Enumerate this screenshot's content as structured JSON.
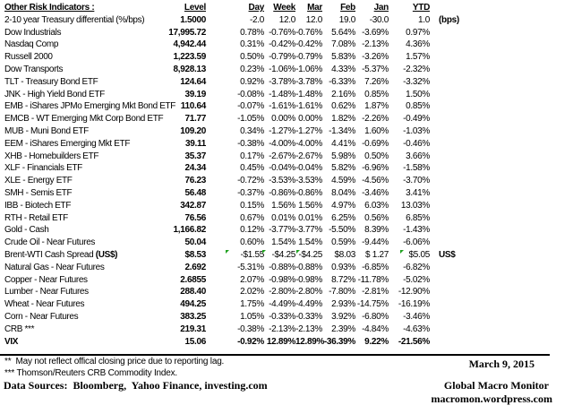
{
  "table": {
    "title": "Other Risk Indicators :",
    "columns": [
      "Level",
      "Day",
      "Week",
      "Mar",
      "Feb",
      "Jan",
      "YTD"
    ],
    "rows": [
      {
        "name": "2-10 year Treasury differential (%/bps)",
        "level": "1.5000",
        "day": "-2.0",
        "week": "12.0",
        "mar": "12.0",
        "feb": "19.0",
        "jan": "-30.0",
        "ytd": "1.0",
        "note": "(bps)"
      },
      {
        "name": "Dow Industrials",
        "level": "17,995.72",
        "day": "0.78%",
        "week": "-0.76%",
        "mar": "-0.76%",
        "feb": "5.64%",
        "jan": "-3.69%",
        "ytd": "0.97%"
      },
      {
        "name": "Nasdaq Comp",
        "level": "4,942.44",
        "day": "0.31%",
        "week": "-0.42%",
        "mar": "-0.42%",
        "feb": "7.08%",
        "jan": "-2.13%",
        "ytd": "4.36%"
      },
      {
        "name": "Russell 2000",
        "level": "1,223.59",
        "day": "0.50%",
        "week": "-0.79%",
        "mar": "-0.79%",
        "feb": "5.83%",
        "jan": "-3.26%",
        "ytd": "1.57%"
      },
      {
        "name": "Dow Transports",
        "level": "8,928.13",
        "day": "0.23%",
        "week": "-1.06%",
        "mar": "-1.06%",
        "feb": "4.33%",
        "jan": "-5.37%",
        "ytd": "-2.32%"
      },
      {
        "name": "TLT - Treasury Bond ETF",
        "level": "124.64",
        "day": "0.92%",
        "week": "-3.78%",
        "mar": "-3.78%",
        "feb": "-6.33%",
        "jan": "7.26%",
        "ytd": "-3.32%"
      },
      {
        "name": "JNK - High Yield Bond ETF",
        "level": "39.19",
        "day": "-0.08%",
        "week": "-1.48%",
        "mar": "-1.48%",
        "feb": "2.16%",
        "jan": "0.85%",
        "ytd": "1.50%"
      },
      {
        "name": "EMB - iShares JPMo Emerging Mkt Bond ETF",
        "level": "110.64",
        "day": "-0.07%",
        "week": "-1.61%",
        "mar": "-1.61%",
        "feb": "0.62%",
        "jan": "1.87%",
        "ytd": "0.85%"
      },
      {
        "name": "EMCB - WT Emerging Mkt Corp Bond ETF",
        "level": "71.77",
        "day": "-1.05%",
        "week": "0.00%",
        "mar": "0.00%",
        "feb": "1.82%",
        "jan": "-2.26%",
        "ytd": "-0.49%"
      },
      {
        "name": "MUB - Muni Bond ETF",
        "level": "109.20",
        "day": "0.34%",
        "week": "-1.27%",
        "mar": "-1.27%",
        "feb": "-1.34%",
        "jan": "1.60%",
        "ytd": "-1.03%"
      },
      {
        "name": "EEM - iShares Emerging Mkt ETF",
        "level": "39.11",
        "day": "-0.38%",
        "week": "-4.00%",
        "mar": "-4.00%",
        "feb": "4.41%",
        "jan": "-0.69%",
        "ytd": "-0.46%"
      },
      {
        "name": "XHB - Homebuilders ETF",
        "level": "35.37",
        "day": "0.17%",
        "week": "-2.67%",
        "mar": "-2.67%",
        "feb": "5.98%",
        "jan": "0.50%",
        "ytd": "3.66%"
      },
      {
        "name": "XLF - Financials ETF",
        "level": "24.34",
        "day": "0.45%",
        "week": "-0.04%",
        "mar": "-0.04%",
        "feb": "5.82%",
        "jan": "-6.96%",
        "ytd": "-1.58%"
      },
      {
        "name": "XLE - Energy ETF",
        "level": "76.23",
        "day": "-0.72%",
        "week": "-3.53%",
        "mar": "-3.53%",
        "feb": "4.59%",
        "jan": "-4.56%",
        "ytd": "-3.70%"
      },
      {
        "name": "SMH - Semis ETF",
        "level": "56.48",
        "day": "-0.37%",
        "week": "-0.86%",
        "mar": "-0.86%",
        "feb": "8.04%",
        "jan": "-3.46%",
        "ytd": "3.41%"
      },
      {
        "name": "IBB - Biotech ETF",
        "level": "342.87",
        "day": "0.15%",
        "week": "1.56%",
        "mar": "1.56%",
        "feb": "4.97%",
        "jan": "6.03%",
        "ytd": "13.03%"
      },
      {
        "name": "RTH - Retail ETF",
        "level": "76.56",
        "day": "0.67%",
        "week": "0.01%",
        "mar": "0.01%",
        "feb": "6.25%",
        "jan": "0.56%",
        "ytd": "6.85%"
      },
      {
        "name": "Gold - Cash",
        "level": "1,166.82",
        "day": "0.12%",
        "week": "-3.77%",
        "mar": "-3.77%",
        "feb": "-5.50%",
        "jan": "8.39%",
        "ytd": "-1.43%"
      },
      {
        "name": "Crude Oil - Near Futures",
        "level": "50.04",
        "day": "0.60%",
        "week": "1.54%",
        "mar": "1.54%",
        "feb": "0.59%",
        "jan": "-9.44%",
        "ytd": "-6.06%"
      },
      {
        "name": "Brent-WTI Cash Spread ",
        "name_bold_suffix": "(US$)",
        "level": "$8.53",
        "day": "-$1.55",
        "week": "-$4.25",
        "mar": "-$4.25",
        "feb": "$8.03",
        "jan": "$ 1.27",
        "ytd": "$5.05",
        "note": "US$",
        "flags": [
          "day",
          "week",
          "mar",
          "ytd"
        ]
      },
      {
        "name": "Natural Gas - Near Futures",
        "level": "2.692",
        "day": "-5.31%",
        "week": "-0.88%",
        "mar": "-0.88%",
        "feb": "0.93%",
        "jan": "-6.85%",
        "ytd": "-6.82%"
      },
      {
        "name": "Copper - Near Futures",
        "level": "2.6855",
        "day": "2.07%",
        "week": "-0.98%",
        "mar": "-0.98%",
        "feb": "8.72%",
        "jan": "-11.78%",
        "ytd": "-5.02%"
      },
      {
        "name": "Lumber - Near Futures",
        "level": "288.40",
        "day": "2.02%",
        "week": "-2.80%",
        "mar": "-2.80%",
        "feb": "-7.80%",
        "jan": "-2.81%",
        "ytd": "-12.90%"
      },
      {
        "name": "Wheat - Near Futures",
        "level": "494.25",
        "day": "1.75%",
        "week": "-4.49%",
        "mar": "-4.49%",
        "feb": "2.93%",
        "jan": "-14.75%",
        "ytd": "-16.19%"
      },
      {
        "name": "Corn - Near Futures",
        "level": "383.25",
        "day": "1.05%",
        "week": "-0.33%",
        "mar": "-0.33%",
        "feb": "3.92%",
        "jan": "-6.80%",
        "ytd": "-3.46%"
      },
      {
        "name": "CRB ***",
        "level": "219.31",
        "day": "-0.38%",
        "week": "-2.13%",
        "mar": "-2.13%",
        "feb": "2.39%",
        "jan": "-4.84%",
        "ytd": "-4.63%"
      },
      {
        "name": "VIX",
        "level": "15.06",
        "day": "-0.92%",
        "week": "12.89%",
        "mar": "12.89%",
        "feb": "-36.39%",
        "jan": "9.22%",
        "ytd": "-21.56%",
        "bold": true
      }
    ]
  },
  "footnotes": {
    "reporting_lag": "**  May not reflect offical closing price due to reporting lag.",
    "crb_index": "*** Thomson/Reuters CRB Commodity Index.",
    "data_sources": "Data Sources:  Bloomberg,  Yahoo Finance, investing.com"
  },
  "footer": {
    "date": "March 9, 2015",
    "brand": "Global Macro Monitor",
    "url": "macromon.wordpress.com"
  },
  "colors": {
    "flag_green": "#1FA11F",
    "text": "#000000"
  }
}
